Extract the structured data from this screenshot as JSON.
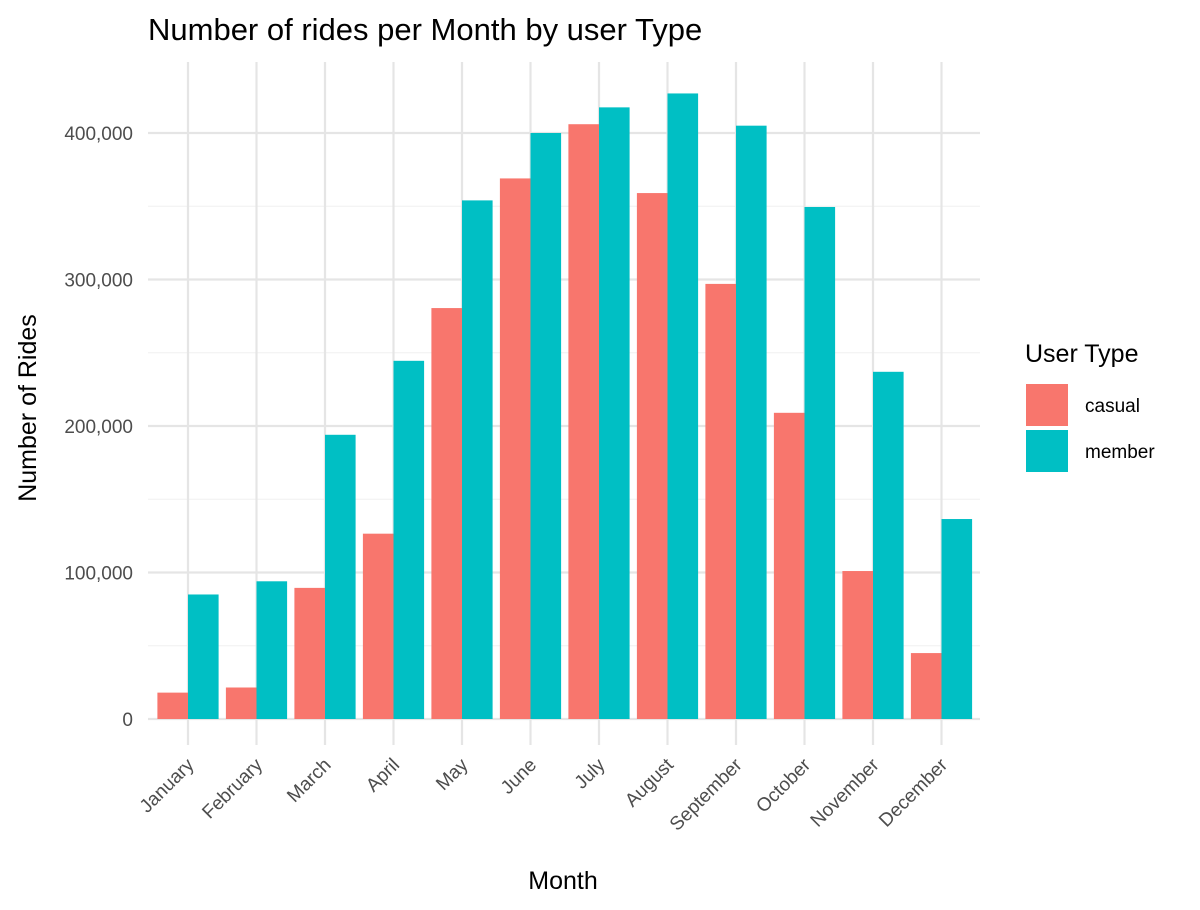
{
  "chart_data": {
    "type": "bar",
    "title": "Number of rides per Month by user Type",
    "xlabel": "Month",
    "ylabel": "Number of Rides",
    "categories": [
      "January",
      "February",
      "March",
      "April",
      "May",
      "June",
      "July",
      "August",
      "September",
      "October",
      "November",
      "December"
    ],
    "series": [
      {
        "name": "casual",
        "color": "#F8766D",
        "values": [
          18000,
          21500,
          89500,
          126500,
          280500,
          369000,
          406000,
          359000,
          297000,
          209000,
          101000,
          45000
        ]
      },
      {
        "name": "member",
        "color": "#00BFC4",
        "values": [
          85000,
          94000,
          194000,
          244500,
          354000,
          400000,
          417500,
          427000,
          405000,
          349500,
          237000,
          136500
        ]
      }
    ],
    "ylim": [
      0,
      450000
    ],
    "yticks": [
      0,
      100000,
      200000,
      300000,
      400000
    ],
    "ytick_labels": [
      "0",
      "100,000",
      "200,000",
      "300,000",
      "400,000"
    ],
    "grid": true,
    "legend": {
      "title": "User Type",
      "position": "right"
    }
  }
}
